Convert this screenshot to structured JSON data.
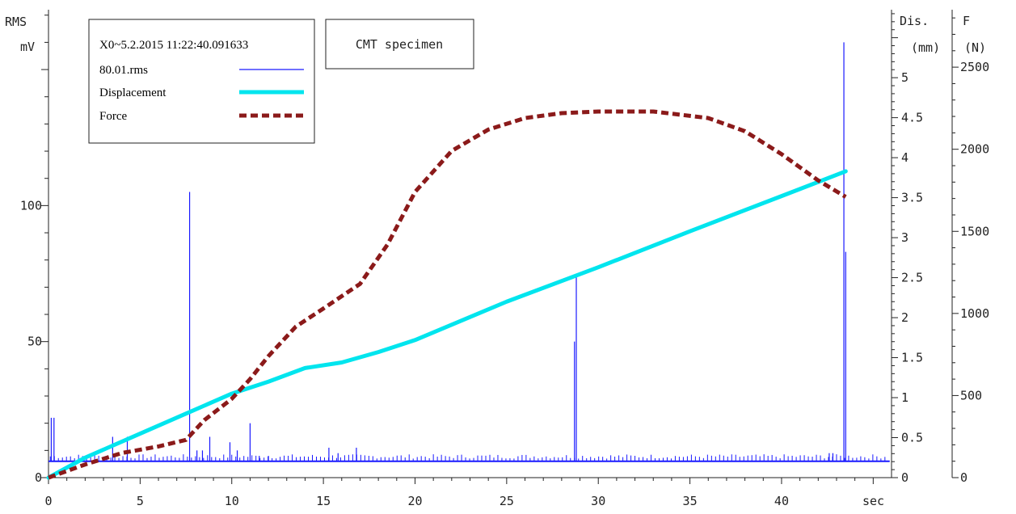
{
  "chart_data": {
    "type": "line",
    "title": "",
    "annotation": "CMT specimen",
    "legend": {
      "placement": "top-left",
      "header": "X0~5.2.2015 11:22:40.091633",
      "entries": [
        "80.01.rms",
        "Displacement",
        "Force"
      ]
    },
    "xlabel": "sec",
    "xlim": [
      0,
      46
    ],
    "x_ticks": [
      "0",
      "5",
      "10",
      "15",
      "20",
      "25",
      "30",
      "35",
      "40"
    ],
    "axes": {
      "rms": {
        "label_top": "RMS",
        "unit": "mV",
        "ylim": [
          0,
          172
        ],
        "ticks": [
          "0",
          "50",
          "100"
        ]
      },
      "dis": {
        "label_top": "Dis.",
        "unit": "(mm)",
        "ylim": [
          0,
          5.85
        ],
        "ticks": [
          "0",
          "0.5",
          "1",
          "1.5",
          "2",
          "2.5",
          "3",
          "3.5",
          "4",
          "4.5",
          "5"
        ]
      },
      "force": {
        "label_top": "F",
        "unit": "(N)",
        "ylim": [
          0,
          2850
        ],
        "ticks": [
          "0",
          "500",
          "1000",
          "1500",
          "2000",
          "2500"
        ]
      }
    },
    "series": [
      {
        "name": "80.01.rms",
        "axis": "rms",
        "color": "#1a1aff",
        "baseline": 6,
        "spikes": [
          [
            0.15,
            22
          ],
          [
            0.3,
            22
          ],
          [
            3.5,
            15
          ],
          [
            4.3,
            15
          ],
          [
            7.7,
            105
          ],
          [
            8.1,
            10
          ],
          [
            8.4,
            10
          ],
          [
            8.8,
            15
          ],
          [
            9.9,
            13
          ],
          [
            10.3,
            10
          ],
          [
            11.0,
            20
          ],
          [
            11.5,
            8
          ],
          [
            12.0,
            8
          ],
          [
            15.3,
            11
          ],
          [
            15.8,
            9
          ],
          [
            16.8,
            11
          ],
          [
            28.7,
            50
          ],
          [
            28.8,
            75
          ],
          [
            42.6,
            9
          ],
          [
            42.8,
            9
          ],
          [
            43.4,
            160
          ],
          [
            43.5,
            83
          ]
        ]
      },
      {
        "name": "Displacement",
        "axis": "dis",
        "color": "#00e5ee",
        "x": [
          0,
          2,
          5,
          7.5,
          10,
          12,
          14,
          16,
          18,
          20,
          25,
          30,
          35,
          40,
          43.5
        ],
        "y": [
          0,
          0.25,
          0.55,
          0.8,
          1.05,
          1.2,
          1.37,
          1.44,
          1.57,
          1.72,
          2.2,
          2.63,
          3.08,
          3.52,
          3.83
        ]
      },
      {
        "name": "Force",
        "axis": "force",
        "color": "#8b1a1a",
        "x": [
          0,
          2,
          4,
          6,
          7.5,
          8.5,
          10,
          11,
          12,
          13.5,
          15,
          17,
          18.5,
          20,
          22,
          24,
          26,
          28,
          30,
          33,
          36,
          38,
          40,
          42,
          43.5
        ],
        "y": [
          0,
          80,
          150,
          190,
          230,
          350,
          480,
          600,
          740,
          920,
          1030,
          1180,
          1420,
          1740,
          1990,
          2120,
          2190,
          2220,
          2230,
          2230,
          2190,
          2110,
          1970,
          1810,
          1710
        ]
      }
    ]
  }
}
